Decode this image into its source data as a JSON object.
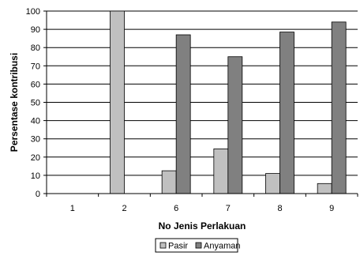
{
  "chart_data": {
    "type": "bar",
    "title": "",
    "xlabel": "No Jenis Perlakuan",
    "ylabel": "Persentase kontribusi",
    "categories": [
      "1",
      "2",
      "6",
      "7",
      "8",
      "9"
    ],
    "series": [
      {
        "name": "Pasir",
        "values": [
          0,
          100,
          12.5,
          24.5,
          11,
          5.5
        ],
        "color": "#c0c0c0"
      },
      {
        "name": "Anyaman",
        "values": [
          0,
          0,
          87,
          75,
          88.5,
          94
        ],
        "color": "#808080"
      }
    ],
    "ylim": [
      0,
      100
    ],
    "yticks": [
      0,
      10,
      20,
      30,
      40,
      50,
      60,
      70,
      80,
      90,
      100
    ],
    "grid": true,
    "legend_position": "bottom-center"
  }
}
